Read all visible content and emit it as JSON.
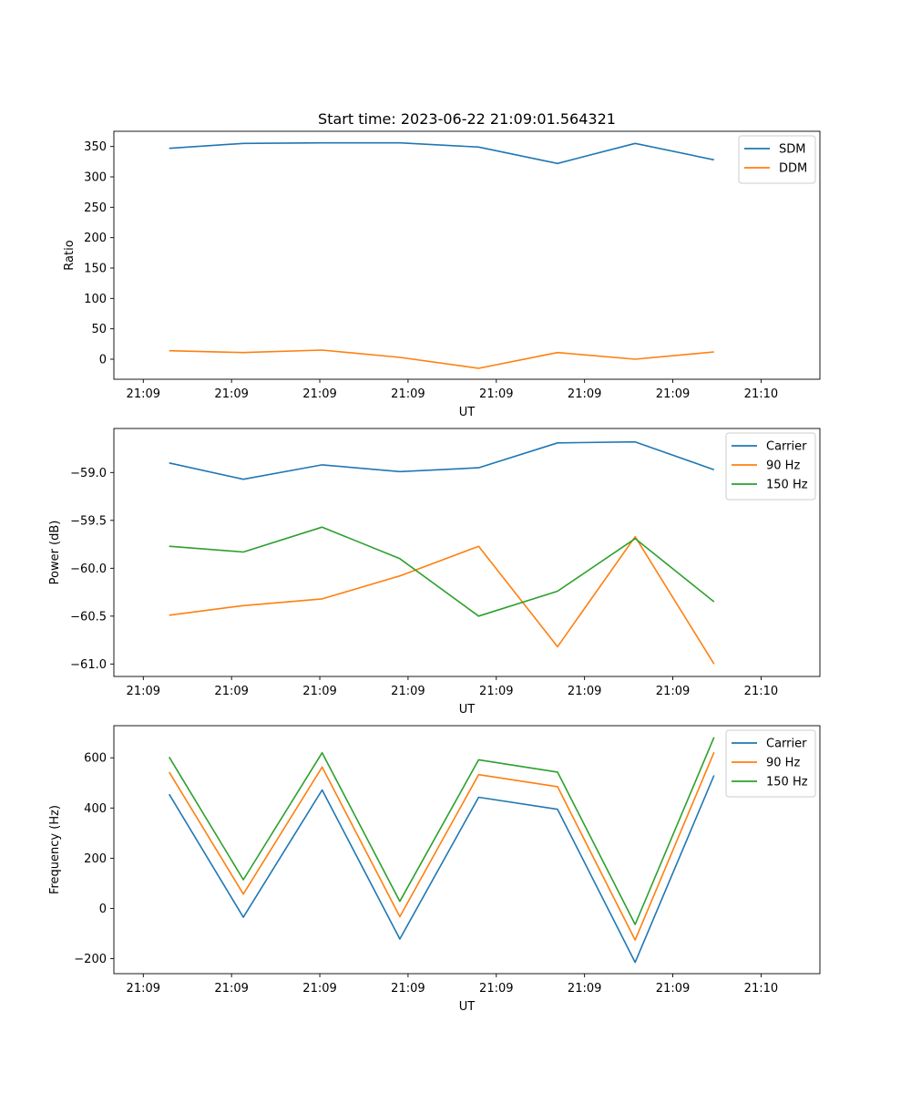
{
  "chart_data": [
    {
      "type": "line",
      "title": "Start time: 2023-06-22 21:09:01.564321",
      "xlabel": "UT",
      "ylabel": "Ratio",
      "x_tick_labels": [
        "21:09",
        "21:09",
        "21:09",
        "21:09",
        "21:09",
        "21:09",
        "21:09",
        "21:10"
      ],
      "y_ticks": [
        0,
        50,
        100,
        150,
        200,
        250,
        300,
        350
      ],
      "y_tick_labels": [
        "0",
        "50",
        "100",
        "150",
        "200",
        "250",
        "300",
        "350"
      ],
      "xlim": [
        0,
        6
      ],
      "ylim": [
        -33,
        375
      ],
      "x": [
        0.47,
        1.1,
        1.77,
        2.43,
        3.1,
        3.77,
        4.43,
        5.1
      ],
      "legend_position": "top-right",
      "series": [
        {
          "name": "SDM",
          "color": "#1f77b4",
          "values": [
            347,
            355,
            356,
            356,
            349,
            322,
            355,
            328
          ]
        },
        {
          "name": "DDM",
          "color": "#ff7f0e",
          "values": [
            14,
            11,
            15,
            3,
            -15,
            11,
            0,
            12
          ]
        }
      ]
    },
    {
      "type": "line",
      "title": "",
      "xlabel": "UT",
      "ylabel": "Power (dB)",
      "x_tick_labels": [
        "21:09",
        "21:09",
        "21:09",
        "21:09",
        "21:09",
        "21:09",
        "21:09",
        "21:10"
      ],
      "y_ticks": [
        -61.0,
        -60.5,
        -60.0,
        -59.5,
        -59.0
      ],
      "y_tick_labels": [
        "−61.0",
        "−60.5",
        "−60.0",
        "−59.5",
        "−59.0"
      ],
      "xlim": [
        0,
        6
      ],
      "ylim": [
        -61.13,
        -58.54
      ],
      "x": [
        0.47,
        1.1,
        1.77,
        2.43,
        3.1,
        3.77,
        4.43,
        5.1
      ],
      "legend_position": "top-right",
      "series": [
        {
          "name": "Carrier",
          "color": "#1f77b4",
          "values": [
            -58.9,
            -59.07,
            -58.92,
            -58.99,
            -58.95,
            -58.69,
            -58.68,
            -58.97
          ]
        },
        {
          "name": "90 Hz",
          "color": "#ff7f0e",
          "values": [
            -60.49,
            -60.39,
            -60.32,
            -60.08,
            -59.77,
            -60.82,
            -59.67,
            -61.0
          ]
        },
        {
          "name": "150 Hz",
          "color": "#2ca02c",
          "values": [
            -59.77,
            -59.83,
            -59.57,
            -59.9,
            -60.5,
            -60.24,
            -59.69,
            -60.35
          ]
        }
      ]
    },
    {
      "type": "line",
      "title": "",
      "xlabel": "UT",
      "ylabel": "Frequency (Hz)",
      "x_tick_labels": [
        "21:09",
        "21:09",
        "21:09",
        "21:09",
        "21:09",
        "21:09",
        "21:09",
        "21:10"
      ],
      "y_ticks": [
        -200,
        0,
        200,
        400,
        600
      ],
      "y_tick_labels": [
        "−200",
        "0",
        "200",
        "400",
        "600"
      ],
      "xlim": [
        0,
        6
      ],
      "ylim": [
        -260,
        728
      ],
      "x": [
        0.47,
        1.1,
        1.77,
        2.43,
        3.1,
        3.77,
        4.43,
        5.1
      ],
      "legend_position": "top-right",
      "series": [
        {
          "name": "Carrier",
          "color": "#1f77b4",
          "values": [
            455,
            -35,
            472,
            -122,
            443,
            395,
            -215,
            530
          ]
        },
        {
          "name": "90 Hz",
          "color": "#ff7f0e",
          "values": [
            543,
            57,
            563,
            -33,
            533,
            485,
            -126,
            622
          ]
        },
        {
          "name": "150 Hz",
          "color": "#2ca02c",
          "values": [
            603,
            114,
            620,
            28,
            592,
            543,
            -64,
            682
          ]
        }
      ]
    }
  ]
}
